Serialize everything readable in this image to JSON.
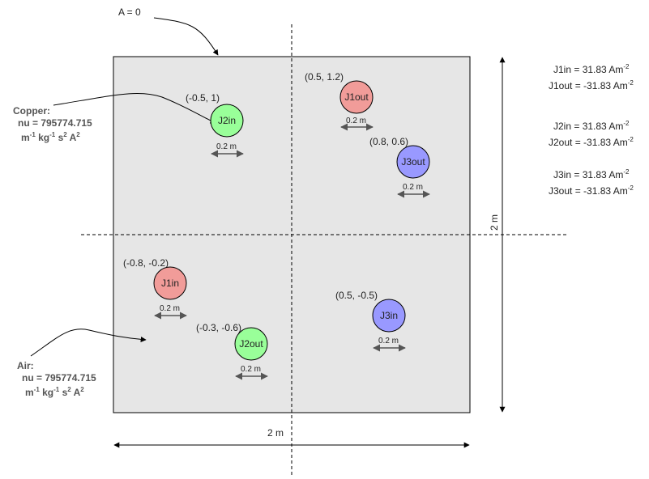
{
  "boundary": {
    "label": "A = 0"
  },
  "materials": {
    "copper": {
      "title": "Copper:",
      "nu": "nu = 795774.715",
      "units_m": "m",
      "units_m_exp": "-1",
      "units_kg": " kg",
      "units_kg_exp": "-1",
      "units_s": " s",
      "units_s_exp": "2",
      "units_A": " A",
      "units_A_exp": "2"
    },
    "air": {
      "title": "Air:",
      "nu": "nu = 795774.715",
      "units_m": "m",
      "units_m_exp": "-1",
      "units_kg": " kg",
      "units_kg_exp": "-1",
      "units_s": " s",
      "units_s_exp": "2",
      "units_A": " A",
      "units_A_exp": "2"
    }
  },
  "conductors": [
    {
      "name": "J1in",
      "coord": "(-0.8, -0.2)",
      "size": "0.2 m",
      "color": "#f19c99"
    },
    {
      "name": "J1out",
      "coord": "(0.5, 1.2)",
      "size": "0.2 m",
      "color": "#f19c99"
    },
    {
      "name": "J2in",
      "coord": "(-0.5, 1)",
      "size": "0.2 m",
      "color": "#99ff99"
    },
    {
      "name": "J2out",
      "coord": "(-0.3, -0.6)",
      "size": "0.2 m",
      "color": "#99ff99"
    },
    {
      "name": "J3in",
      "coord": "(0.5, -0.5)",
      "size": "0.2 m",
      "color": "#9999ff"
    },
    {
      "name": "J3out",
      "coord": "(0.8, 0.6)",
      "size": "0.2 m",
      "color": "#9999ff"
    }
  ],
  "dimensions": {
    "width": "2 m",
    "height": "2 m"
  },
  "current_densities": [
    {
      "text": "J1in = 31.83 Am",
      "exp": "-2"
    },
    {
      "text": "J1out = -31.83 Am",
      "exp": "-2"
    },
    {
      "text": "J2in = 31.83 Am",
      "exp": "-2"
    },
    {
      "text": "J2out = -31.83 Am",
      "exp": "-2"
    },
    {
      "text": "J3in = 31.83 Am",
      "exp": "-2"
    },
    {
      "text": "J3out = -31.83 Am",
      "exp": "-2"
    }
  ],
  "colors": {
    "domain_fill": "#e6e6e6",
    "stroke": "#000000",
    "arrow": "#555555"
  }
}
